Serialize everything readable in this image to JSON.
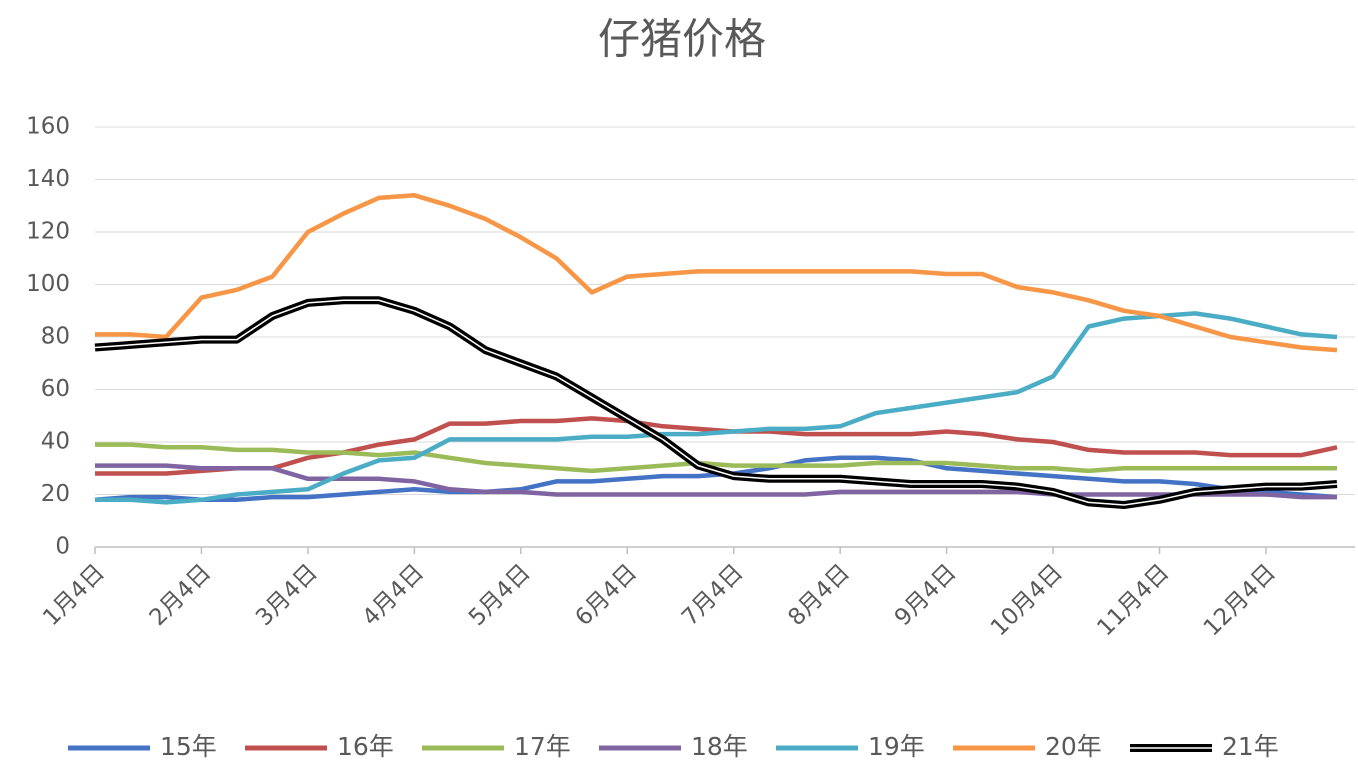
{
  "chart_data": {
    "type": "line",
    "title": "仔猪价格",
    "categories": [
      "1月4日",
      null,
      null,
      "2月4日",
      null,
      null,
      "3月4日",
      null,
      null,
      "4月4日",
      null,
      null,
      "5月4日",
      null,
      null,
      "6月4日",
      null,
      null,
      "7月4日",
      null,
      null,
      "8月4日",
      null,
      null,
      "9月4日",
      null,
      null,
      "10月4日",
      null,
      null,
      "11月4日",
      null,
      null,
      "12月4日",
      null,
      null
    ],
    "series": [
      {
        "name": "15年",
        "color": "#4472c4",
        "values": [
          18,
          19,
          19,
          18,
          18,
          19,
          19,
          20,
          21,
          22,
          21,
          21,
          22,
          25,
          25,
          26,
          27,
          27,
          28,
          30,
          33,
          34,
          34,
          33,
          30,
          29,
          28,
          27,
          26,
          25,
          25,
          24,
          22,
          21,
          20,
          19
        ]
      },
      {
        "name": "16年",
        "color": "#c0504d",
        "values": [
          28,
          28,
          28,
          29,
          30,
          30,
          34,
          36,
          39,
          41,
          47,
          47,
          48,
          48,
          49,
          48,
          46,
          45,
          44,
          44,
          43,
          43,
          43,
          43,
          44,
          43,
          41,
          40,
          37,
          36,
          36,
          36,
          35,
          35,
          35,
          38
        ]
      },
      {
        "name": "17年",
        "color": "#9bbb59",
        "values": [
          39,
          39,
          38,
          38,
          37,
          37,
          36,
          36,
          35,
          36,
          34,
          32,
          31,
          30,
          29,
          30,
          31,
          32,
          31,
          31,
          31,
          31,
          32,
          32,
          32,
          31,
          30,
          30,
          29,
          30,
          30,
          30,
          30,
          30,
          30,
          30
        ]
      },
      {
        "name": "18年",
        "color": "#8064a2",
        "values": [
          31,
          31,
          31,
          30,
          30,
          30,
          26,
          26,
          26,
          25,
          22,
          21,
          21,
          20,
          20,
          20,
          20,
          20,
          20,
          20,
          20,
          21,
          21,
          21,
          21,
          21,
          21,
          20,
          20,
          20,
          20,
          20,
          20,
          20,
          19,
          19
        ]
      },
      {
        "name": "19年",
        "color": "#4bacc6",
        "values": [
          18,
          18,
          17,
          18,
          20,
          21,
          22,
          28,
          33,
          34,
          41,
          41,
          41,
          41,
          42,
          42,
          43,
          43,
          44,
          45,
          45,
          46,
          51,
          53,
          55,
          57,
          59,
          65,
          84,
          87,
          88,
          89,
          87,
          84,
          81,
          80
        ]
      },
      {
        "name": "20年",
        "color": "#f79646",
        "values": [
          81,
          81,
          80,
          95,
          98,
          103,
          120,
          127,
          133,
          134,
          130,
          125,
          118,
          110,
          97,
          103,
          104,
          105,
          105,
          105,
          105,
          105,
          105,
          105,
          104,
          104,
          99,
          97,
          94,
          90,
          88,
          84,
          80,
          78,
          76,
          75
        ]
      },
      {
        "name": "21年",
        "color": "#000000",
        "values": [
          76,
          77,
          78,
          79,
          79,
          88,
          93,
          94,
          94,
          90,
          84,
          75,
          70,
          65,
          57,
          49,
          41,
          31,
          27,
          26,
          26,
          26,
          25,
          24,
          24,
          24,
          23,
          21,
          17,
          16,
          18,
          21,
          22,
          23,
          23,
          24
        ]
      }
    ],
    "ylim": [
      0,
      160
    ],
    "yticks": [
      0,
      20,
      40,
      60,
      80,
      100,
      120,
      140,
      160
    ],
    "grid": true,
    "legend": "bottom"
  }
}
